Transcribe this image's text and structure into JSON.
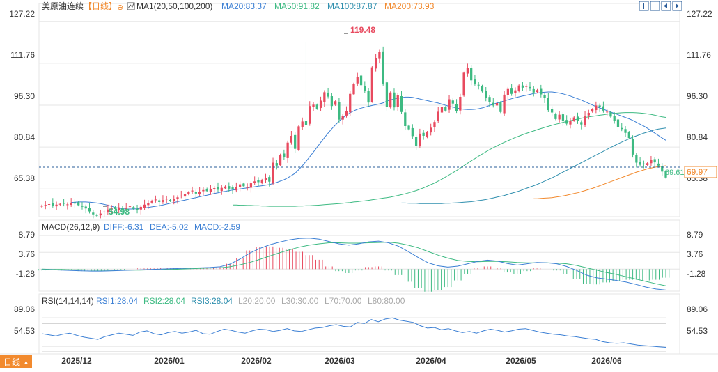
{
  "header": {
    "symbol": "美原油连续",
    "period": "【日线】",
    "ma_label": "MA1(20,50,100,200)",
    "ma20": "MA20:83.37",
    "ma50": "MA50:91.82",
    "ma100": "MA100:87.87",
    "ma200": "MA200:73.93"
  },
  "colors": {
    "up": "#e84a5f",
    "down": "#3dba82",
    "ma20": "#3b7fd4",
    "ma50": "#3dba82",
    "ma100": "#2f8fae",
    "ma200": "#f28a2e",
    "text_blue": "#3b7fd4",
    "axis_text": "#333333",
    "grid": "#e6e6e6"
  },
  "toolbar": [
    "expand-icon",
    "shrink-icon",
    "chevron-left-icon",
    "chevron-right-icon",
    "more-icon"
  ],
  "price_axis": {
    "ticks": [
      "127.22",
      "111.76",
      "96.30",
      "80.84",
      "65.38"
    ],
    "current_label": "69.97",
    "last_close_label": "69.61"
  },
  "annotations": {
    "high": "119.48",
    "low": "54.98"
  },
  "macd": {
    "label": "MACD(26,12,9)",
    "diff": "DIFF:-6.31",
    "dea": "DEA:-5.02",
    "macd": "MACD:-2.59",
    "ticks": [
      "8.79",
      "3.76",
      "-1.28"
    ]
  },
  "rsi": {
    "label": "RSI(14,14,14)",
    "rsi1": "RSI1:28.04",
    "rsi2": "RSI2:28.04",
    "rsi3": "RSI3:28.04",
    "l20": "L20:20.00",
    "l30": "L30:30.00",
    "l70": "L70:70.00",
    "l80": "L80:80.00",
    "ticks": [
      "89.06",
      "54.53"
    ]
  },
  "x_axis": {
    "labels": [
      "2025/12",
      "2026/01",
      "2026/02",
      "2026/03",
      "2026/04",
      "2026/05",
      "2026/06"
    ]
  },
  "footer": {
    "period_button": "日线",
    "period_arrow": "▲"
  },
  "chart_data": {
    "type": "candlestick",
    "ylim": [
      58,
      130
    ],
    "closes": [
      59.2,
      59.5,
      59.8,
      59.3,
      59.6,
      59.9,
      60.1,
      59.7,
      60.3,
      60.0,
      59.4,
      58.9,
      58.2,
      57.1,
      56.0,
      55.5,
      56.3,
      57.0,
      57.8,
      58.4,
      58.0,
      58.6,
      57.8,
      58.4,
      59.0,
      58.1,
      57.5,
      58.8,
      59.6,
      60.2,
      61.0,
      61.5,
      60.6,
      61.3,
      61.8,
      61.0,
      61.6,
      62.3,
      62.9,
      63.5,
      64.2,
      64.8,
      63.7,
      64.4,
      65.0,
      64.6,
      65.3,
      65.7,
      65.1,
      65.8,
      66.3,
      65.5,
      65.2,
      66.0,
      67.1,
      66.4,
      66.0,
      67.5,
      68.2,
      67.9,
      68.7,
      69.5,
      68.1,
      75.1,
      74.0,
      78.0,
      77.1,
      82.5,
      85.0,
      80.2,
      88.5,
      90.3,
      89.0,
      96.0,
      96.5,
      95.0,
      98.0,
      101.1,
      99.5,
      96.0,
      97.8,
      91.0,
      92.2,
      94.1,
      100.5,
      104.2,
      106.8,
      103.7,
      101.5,
      97.3,
      110.3,
      113.8,
      116.0,
      104.3,
      95.8,
      101.0,
      95.5,
      100.1,
      93.8,
      88.6,
      87.4,
      84.9,
      81.4,
      85.8,
      85.0,
      86.4,
      88.0,
      90.1,
      93.9,
      95.6,
      94.3,
      98.5,
      96.9,
      94.2,
      99.4,
      108.3,
      110.2,
      105.5,
      104.3,
      103.6,
      101.4,
      98.9,
      97.5,
      96.2,
      97.1,
      93.8,
      100.2,
      102.3,
      100.5,
      101.8,
      103.6,
      102.8,
      103.5,
      102.4,
      101.0,
      101.9,
      100.3,
      98.9,
      94.5,
      93.6,
      91.2,
      92.8,
      90.4,
      89.5,
      90.6,
      91.8,
      90.5,
      89.2,
      92.4,
      93.5,
      94.8,
      96.2,
      95.6,
      94.3,
      93.9,
      92.1,
      90.6,
      88.2,
      87.5,
      86.1,
      84.2,
      78.1,
      75.1,
      74.3,
      74.5,
      74.9,
      76.1,
      75.2,
      74.0,
      71.8,
      69.61
    ],
    "highs_annotation": 119.48,
    "lows_annotation": 54.98,
    "ma20": [
      60.4,
      60.5,
      60.6,
      60.6,
      60.6,
      60.5,
      60.4,
      60.2,
      60.0,
      59.7,
      59.4,
      59.0,
      58.6,
      58.3,
      58.1,
      58.0,
      58.0,
      58.0,
      58.1,
      58.3,
      58.4,
      58.6,
      58.8,
      59.0,
      59.2,
      59.5,
      59.8,
      60.1,
      60.4,
      60.7,
      61.0,
      61.3,
      61.6,
      61.9,
      62.2,
      62.5,
      62.8,
      63.1,
      63.4,
      63.7,
      64.0,
      64.3,
      64.5,
      64.8,
      65.0,
      65.2,
      65.4,
      65.6,
      65.8,
      66.0,
      66.2,
      66.4,
      66.6,
      66.8,
      67.0,
      67.4,
      67.8,
      68.3,
      68.8,
      69.5,
      70.3,
      71.2,
      72.5,
      74.0,
      75.6,
      77.3,
      79.0,
      80.8,
      82.6,
      84.3,
      86.0,
      87.6,
      89.0,
      90.4,
      91.6,
      92.6,
      93.5,
      94.2,
      94.8,
      95.2,
      95.6,
      95.9,
      96.2,
      96.5,
      96.8,
      97.2,
      97.8,
      98.3,
      98.6,
      98.9,
      99.1,
      99.3,
      99.3,
      99.2,
      98.9,
      98.6,
      98.3,
      98.0,
      97.7,
      97.4,
      97.1,
      96.7,
      96.3,
      95.9,
      95.6,
      95.3,
      95.0,
      94.8,
      94.7,
      94.7,
      94.8,
      95.0,
      95.3,
      95.7,
      96.2,
      96.7,
      97.1,
      97.5,
      97.9,
      98.3,
      98.7,
      99.1,
      99.4,
      99.7,
      100.0,
      100.3,
      100.6,
      100.8,
      101.0,
      101.1,
      101.2,
      101.2,
      101.0,
      100.8,
      100.5,
      100.1,
      99.7,
      99.2,
      98.7,
      98.2,
      97.6,
      97.0,
      96.4,
      95.8,
      95.3,
      94.8,
      94.3,
      93.8,
      93.3,
      92.8,
      92.3,
      91.8,
      91.3,
      90.7,
      90.0,
      89.3,
      88.6,
      87.8,
      86.9,
      86.0,
      85.1,
      84.2,
      83.37
    ],
    "ma50": [
      59.5,
      59.5,
      59.4,
      59.4,
      59.3,
      59.3,
      59.2,
      59.2,
      59.1,
      59.1,
      59.0,
      59.0,
      59.0,
      59.0,
      59.0,
      59.0,
      59.0,
      59.0,
      59.1,
      59.1,
      59.2,
      59.2,
      59.3,
      59.4,
      59.5,
      59.6,
      59.7,
      59.8,
      59.9,
      60.0,
      60.1,
      60.3,
      60.4,
      60.6,
      60.7,
      60.9,
      61.0,
      61.2,
      61.4,
      61.6,
      61.8,
      62.0,
      62.2,
      62.4,
      62.7,
      63.0,
      63.3,
      63.6,
      64.0,
      64.4,
      64.8,
      65.3,
      65.8,
      66.4,
      67.0,
      67.6,
      68.3,
      69.0,
      69.8,
      70.6,
      71.4,
      72.2,
      73.1,
      74.0,
      74.9,
      75.8,
      76.6,
      77.5,
      78.3,
      79.1,
      79.9,
      80.6,
      81.3,
      82.0,
      82.6,
      83.2,
      83.8,
      84.4,
      84.9,
      85.4,
      85.9,
      86.4,
      86.8,
      87.3,
      87.7,
      88.1,
      88.5,
      88.9,
      89.3,
      89.6,
      90.0,
      90.3,
      90.6,
      90.9,
      91.2,
      91.5,
      91.8,
      92.0,
      92.2,
      92.4,
      92.6,
      92.8,
      93.0,
      93.2,
      93.3,
      93.4,
      93.5,
      93.6,
      93.6,
      93.6,
      93.5,
      93.4,
      93.3,
      93.1,
      92.9,
      92.6,
      92.3,
      92.0,
      91.82
    ],
    "ma100": [
      60.2,
      60.2,
      60.1,
      60.1,
      60.1,
      60.0,
      60.0,
      60.0,
      60.0,
      60.0,
      60.0,
      60.0,
      60.1,
      60.1,
      60.2,
      60.3,
      60.4,
      60.5,
      60.6,
      60.7,
      60.9,
      61.1,
      61.3,
      61.5,
      61.8,
      62.1,
      62.4,
      62.7,
      63.0,
      63.4,
      63.8,
      64.2,
      64.6,
      65.1,
      65.6,
      66.1,
      66.6,
      67.1,
      67.7,
      68.3,
      68.9,
      69.5,
      70.2,
      70.9,
      71.6,
      72.3,
      73.0,
      73.7,
      74.4,
      75.1,
      75.8,
      76.5,
      77.2,
      77.9,
      78.6,
      79.3,
      80.0,
      80.7,
      81.4,
      82.1,
      82.7,
      83.3,
      83.9,
      84.5,
      85.0,
      85.5,
      86.0,
      86.4,
      86.8,
      87.2,
      87.5,
      87.7,
      87.87
    ],
    "ma200": [
      61.8,
      61.8,
      61.9,
      62.0,
      62.1,
      62.2,
      62.4,
      62.6,
      62.8,
      63.1,
      63.4,
      63.7,
      64.0,
      64.4,
      64.8,
      65.2,
      65.6,
      66.1,
      66.6,
      67.1,
      67.6,
      68.1,
      68.6,
      69.1,
      69.6,
      70.1,
      70.6,
      71.1,
      71.6,
      72.0,
      72.4,
      72.8,
      73.1,
      73.4,
      73.6,
      73.8,
      73.93
    ],
    "macd_ylim": [
      -7.5,
      10.5
    ],
    "macd_diff": [
      -0.2,
      -0.2,
      -0.3,
      -0.4,
      -0.5,
      -0.6,
      -0.6,
      -0.5,
      -0.4,
      -0.3,
      -0.2,
      -0.1,
      0.0,
      0.1,
      0.2,
      0.3,
      0.4,
      0.5,
      0.7,
      1.5,
      3.0,
      4.8,
      6.2,
      7.3,
      8.1,
      8.8,
      9.2,
      9.3,
      9.0,
      8.3,
      7.6,
      7.2,
      7.6,
      8.2,
      8.4,
      7.9,
      6.9,
      5.3,
      3.5,
      1.9,
      1.0,
      0.6,
      0.9,
      1.6,
      2.3,
      2.7,
      2.4,
      1.7,
      1.2,
      1.6,
      2.0,
      1.9,
      1.6,
      0.8,
      -0.4,
      -1.8,
      -2.6,
      -3.0,
      -3.4,
      -3.9,
      -4.6,
      -5.4,
      -6.0,
      -6.31
    ],
    "macd_dea": [
      0.0,
      -0.1,
      -0.1,
      -0.2,
      -0.2,
      -0.3,
      -0.3,
      -0.3,
      -0.3,
      -0.3,
      -0.3,
      -0.2,
      -0.2,
      -0.1,
      0.0,
      0.1,
      0.2,
      0.3,
      0.4,
      0.7,
      1.3,
      2.0,
      2.9,
      3.9,
      4.9,
      5.8,
      6.6,
      7.2,
      7.6,
      7.9,
      7.9,
      7.8,
      7.8,
      7.9,
      8.0,
      8.1,
      7.8,
      7.2,
      6.4,
      5.3,
      4.2,
      3.3,
      2.6,
      2.3,
      2.2,
      2.3,
      2.3,
      2.2,
      2.0,
      1.9,
      1.9,
      1.9,
      1.8,
      1.6,
      1.1,
      0.4,
      -0.3,
      -1.0,
      -1.6,
      -2.3,
      -3.0,
      -3.7,
      -4.4,
      -5.02
    ],
    "rsi_ylim": [
      20,
      100
    ],
    "rsi": [
      52,
      50,
      48,
      51,
      53,
      49,
      46,
      44,
      42,
      47,
      50,
      53,
      51,
      49,
      55,
      57,
      52,
      50,
      54,
      56,
      53,
      55,
      58,
      52,
      51,
      56,
      60,
      58,
      55,
      53,
      57,
      60,
      59,
      56,
      58,
      61,
      57,
      56,
      59,
      62,
      63,
      66,
      68,
      65,
      64,
      72,
      70,
      77,
      73,
      78,
      80,
      76,
      74,
      72,
      66,
      62,
      63,
      59,
      61,
      57,
      54,
      56,
      53,
      57,
      60,
      58,
      55,
      57,
      60,
      61,
      58,
      55,
      53,
      51,
      50,
      48,
      47,
      45,
      43,
      42,
      38,
      36,
      35,
      36,
      34,
      32,
      31,
      30,
      29,
      28.04
    ]
  }
}
